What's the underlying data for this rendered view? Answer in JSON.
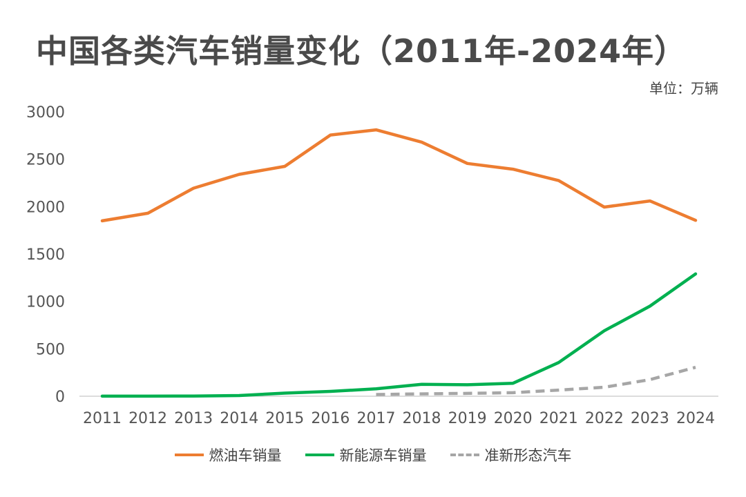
{
  "header": {
    "title": "中国各类汽车销量变化（2011年-2024年）",
    "unit": "单位：万辆"
  },
  "colors": {
    "fuel": "#ED7D31",
    "nev": "#00B050",
    "quasi": "#A6A6A6",
    "axis": "#D0D0D0"
  },
  "chart_data": {
    "type": "line",
    "title": "中国各类汽车销量变化（2011年-2024年）",
    "ylabel": "单位：万辆",
    "xlabel": "",
    "ylim": [
      0,
      3000
    ],
    "yticks": [
      0,
      500,
      1000,
      1500,
      2000,
      2500,
      3000
    ],
    "grid": false,
    "legend_position": "bottom",
    "categories": [
      "2011",
      "2012",
      "2013",
      "2014",
      "2015",
      "2016",
      "2017",
      "2018",
      "2019",
      "2020",
      "2021",
      "2022",
      "2023",
      "2024"
    ],
    "series": [
      {
        "name": "燃油车销量",
        "color": "#ED7D31",
        "style": "solid",
        "values": [
          1850,
          1930,
          2195,
          2340,
          2425,
          2755,
          2810,
          2680,
          2455,
          2395,
          2275,
          1995,
          2060,
          1855
        ]
      },
      {
        "name": "新能源车销量",
        "color": "#00B050",
        "style": "solid",
        "values": [
          1,
          1,
          2,
          7,
          33,
          51,
          78,
          126,
          121,
          137,
          355,
          690,
          950,
          1290
        ]
      },
      {
        "name": "准新形态汽车",
        "color": "#A6A6A6",
        "style": "dashed",
        "values": [
          null,
          null,
          null,
          null,
          null,
          null,
          18,
          25,
          30,
          37,
          65,
          95,
          175,
          305
        ]
      }
    ]
  }
}
